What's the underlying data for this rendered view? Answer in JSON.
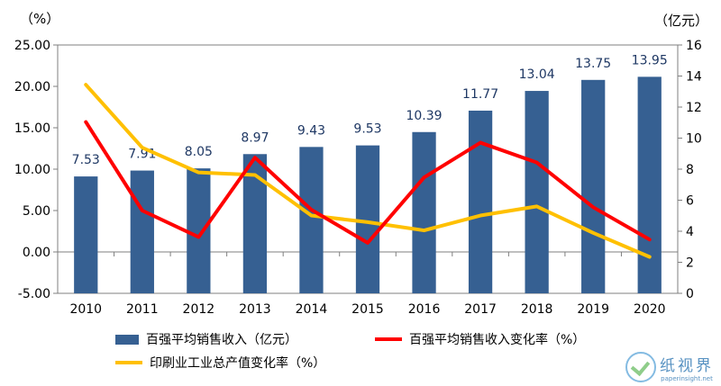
{
  "chart_data": {
    "type": "bar+line",
    "title": "",
    "categories": [
      "2010",
      "2011",
      "2012",
      "2013",
      "2014",
      "2015",
      "2016",
      "2017",
      "2018",
      "2019",
      "2020"
    ],
    "left_axis": {
      "unit": "（%）",
      "ylim": [
        -5,
        25
      ],
      "ticks": [
        "-5.00",
        "0.00",
        "5.00",
        "10.00",
        "15.00",
        "20.00",
        "25.00"
      ]
    },
    "right_axis": {
      "unit": "（亿元）",
      "ylim": [
        0,
        16
      ],
      "ticks": [
        "0",
        "2",
        "4",
        "6",
        "8",
        "10",
        "12",
        "14",
        "16"
      ]
    },
    "series": [
      {
        "name": "百强平均销售收入（亿元）",
        "type": "bar",
        "axis": "right",
        "color": "#366092",
        "values": [
          7.53,
          7.91,
          8.05,
          8.97,
          9.43,
          9.53,
          10.39,
          11.77,
          13.04,
          13.75,
          13.95
        ],
        "labels": [
          "7.53",
          "7.91",
          "8.05",
          "8.97",
          "9.43",
          "9.53",
          "10.39",
          "11.77",
          "13.04",
          "13.75",
          "13.95"
        ]
      },
      {
        "name": "百强平均销售收入变化率（%）",
        "type": "line",
        "axis": "left",
        "color": "#ff0000",
        "values": [
          15.7,
          5.0,
          1.8,
          11.4,
          5.1,
          1.1,
          9.0,
          13.2,
          10.8,
          5.4,
          1.5
        ]
      },
      {
        "name": "印刷业工业总产值变化率（%）",
        "type": "line",
        "axis": "left",
        "color": "#ffc000",
        "values": [
          20.2,
          12.6,
          9.6,
          9.3,
          4.4,
          3.6,
          2.6,
          4.4,
          5.5,
          2.3,
          -0.6
        ]
      }
    ],
    "grid": false,
    "legend": "bottom"
  },
  "watermark": {
    "text": "纸视界",
    "url": "paperinsight.net"
  }
}
